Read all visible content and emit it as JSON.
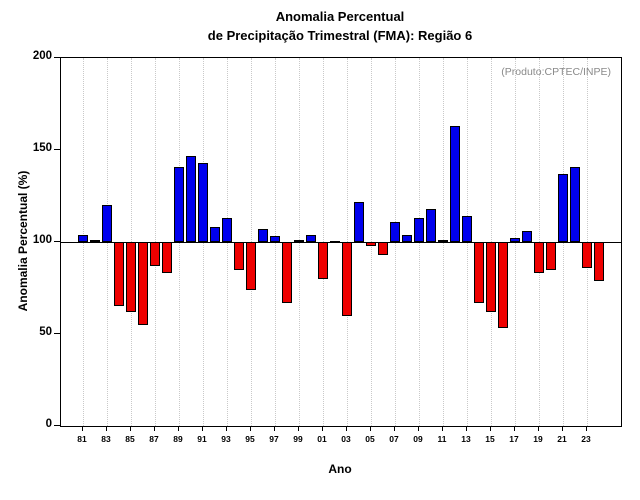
{
  "title": {
    "line1": "Anomalia Percentual",
    "line2": "de Precipitação Trimestral (FMA): Região 6"
  },
  "annotation": "(Produto:CPTEC/INPE)",
  "chart_data": {
    "type": "bar",
    "title": "Anomalia Percentual de Precipitação Trimestral (FMA): Região 6",
    "xlabel": "Ano",
    "ylabel": "Anomalia Percentual (%)",
    "ylim": [
      0,
      200
    ],
    "yticks": [
      0,
      50,
      100,
      150,
      200
    ],
    "baseline": 100,
    "grid": "vertical-dotted-at-labeled-years",
    "legend": "none",
    "color_above_baseline": "#0000ee",
    "color_below_baseline": "#ee0000",
    "categories": [
      "81",
      "82",
      "83",
      "84",
      "85",
      "86",
      "87",
      "88",
      "89",
      "90",
      "91",
      "92",
      "93",
      "94",
      "95",
      "96",
      "97",
      "98",
      "99",
      "00",
      "01",
      "02",
      "03",
      "04",
      "05",
      "06",
      "07",
      "08",
      "09",
      "10",
      "11",
      "12",
      "13",
      "14",
      "15",
      "16",
      "17",
      "18",
      "19",
      "20",
      "21",
      "22",
      "23",
      "24"
    ],
    "values": [
      104,
      101,
      120,
      65,
      62,
      55,
      87,
      83,
      141,
      147,
      143,
      108,
      113,
      85,
      74,
      107,
      103,
      67,
      101,
      104,
      80,
      100,
      60,
      122,
      98,
      93,
      111,
      104,
      113,
      118,
      101,
      163,
      114,
      67,
      62,
      53,
      102,
      106,
      83,
      85,
      137,
      141,
      86,
      79
    ],
    "xtick_labels": [
      "81",
      "83",
      "85",
      "87",
      "89",
      "91",
      "93",
      "95",
      "97",
      "99",
      "01",
      "03",
      "05",
      "07",
      "09",
      "11",
      "13",
      "15",
      "17",
      "19",
      "21",
      "23"
    ]
  }
}
